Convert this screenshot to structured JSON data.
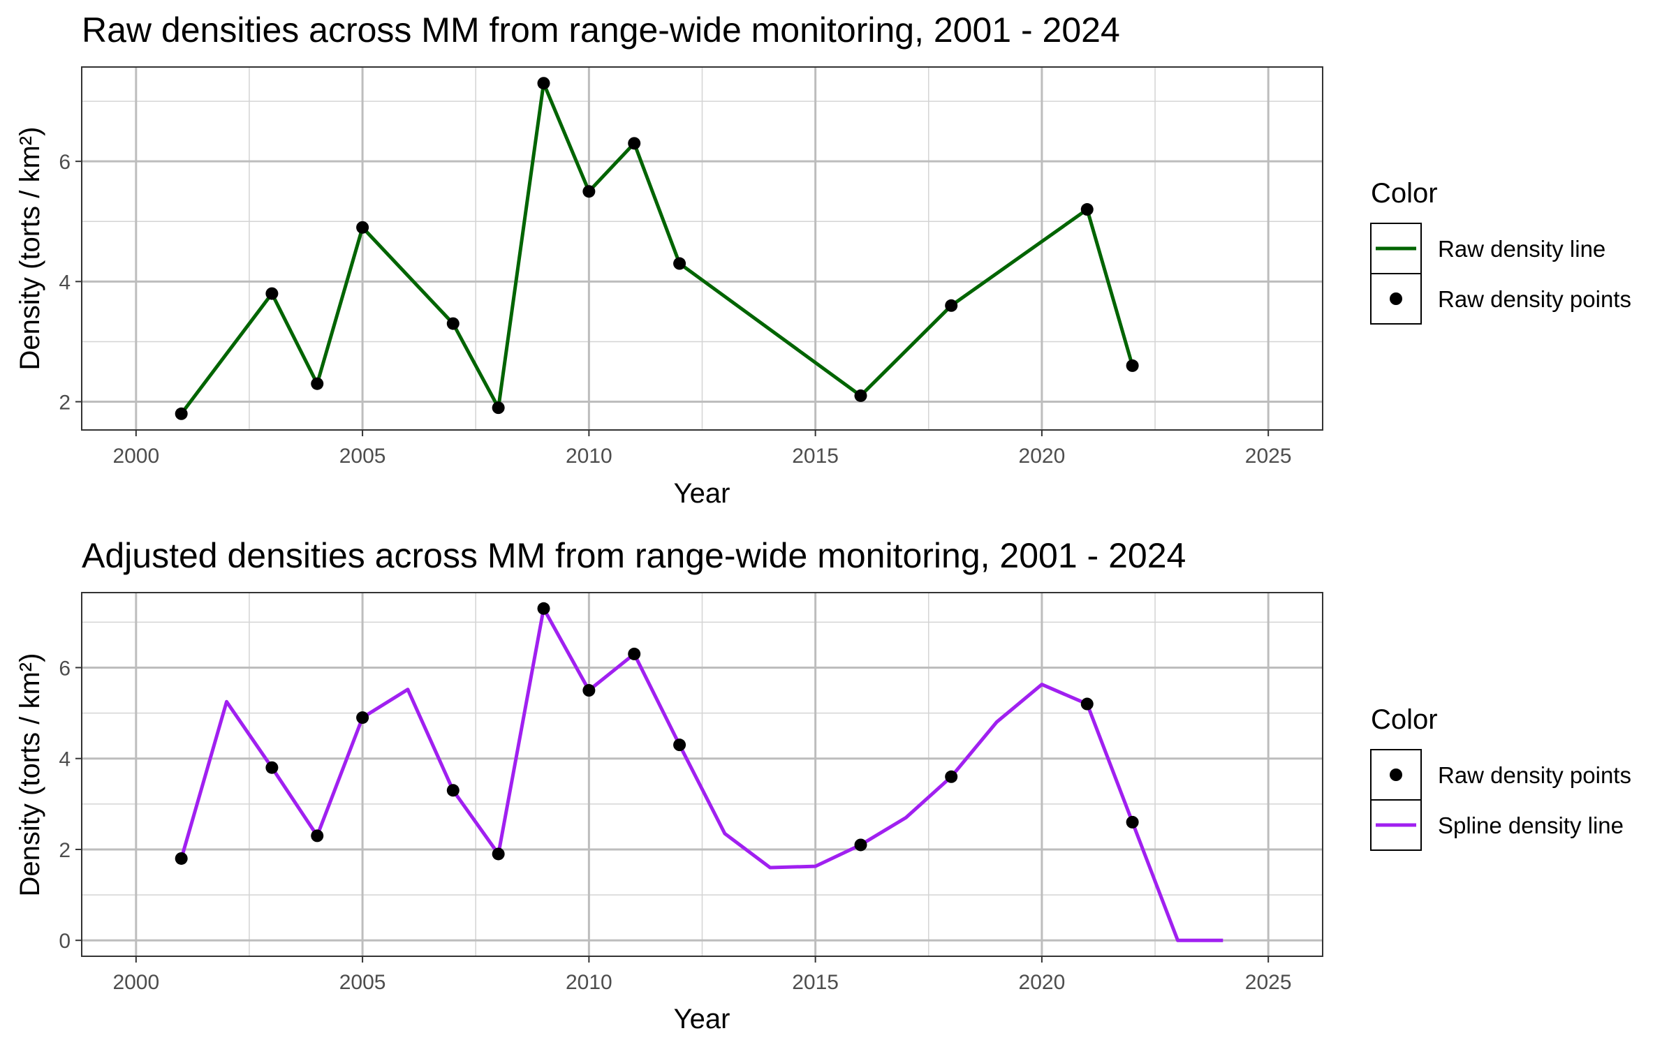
{
  "chart_data": [
    {
      "type": "line",
      "title": "Raw densities across MM from range-wide monitoring, 2001 - 2024",
      "xlabel": "Year",
      "ylabel": "Density (torts / km²)",
      "xlim": [
        1998.8,
        2026.2
      ],
      "ylim": [
        1.53,
        7.57
      ],
      "x_ticks": [
        2000,
        2005,
        2010,
        2015,
        2020,
        2025
      ],
      "x_tick_labels": [
        "2000",
        "2005",
        "2010",
        "2015",
        "2020",
        "2025"
      ],
      "y_ticks": [
        2,
        4,
        6
      ],
      "y_tick_labels": [
        "2",
        "4",
        "6"
      ],
      "grid": true,
      "legend": {
        "title": "Color",
        "position": "right",
        "entries": [
          {
            "label": "Raw density line",
            "kind": "line",
            "color": "#006400"
          },
          {
            "label": "Raw density points",
            "kind": "point",
            "color": "#000000"
          }
        ]
      },
      "series": [
        {
          "name": "Raw density line",
          "kind": "line",
          "color": "#006400",
          "x": [
            2001,
            2003,
            2004,
            2005,
            2007,
            2008,
            2009,
            2010,
            2011,
            2012,
            2016,
            2018,
            2021,
            2022
          ],
          "y": [
            1.8,
            3.8,
            2.3,
            4.9,
            3.3,
            1.9,
            7.3,
            5.5,
            6.3,
            4.3,
            2.1,
            3.6,
            5.2,
            2.6
          ]
        },
        {
          "name": "Raw density points",
          "kind": "point",
          "color": "#000000",
          "x": [
            2001,
            2003,
            2004,
            2005,
            2007,
            2008,
            2009,
            2010,
            2011,
            2012,
            2016,
            2018,
            2021,
            2022
          ],
          "y": [
            1.8,
            3.8,
            2.3,
            4.9,
            3.3,
            1.9,
            7.3,
            5.5,
            6.3,
            4.3,
            2.1,
            3.6,
            5.2,
            2.6
          ]
        }
      ]
    },
    {
      "type": "line",
      "title": "Adjusted densities across MM from range-wide monitoring, 2001 - 2024",
      "xlabel": "Year",
      "ylabel": "Density (torts / km²)",
      "xlim": [
        1998.8,
        2026.2
      ],
      "ylim": [
        -0.35,
        7.65
      ],
      "x_ticks": [
        2000,
        2005,
        2010,
        2015,
        2020,
        2025
      ],
      "x_tick_labels": [
        "2000",
        "2005",
        "2010",
        "2015",
        "2020",
        "2025"
      ],
      "y_ticks": [
        0,
        2,
        4,
        6
      ],
      "y_tick_labels": [
        "0",
        "2",
        "4",
        "6"
      ],
      "grid": true,
      "legend": {
        "title": "Color",
        "position": "right",
        "entries": [
          {
            "label": "Raw density points",
            "kind": "point",
            "color": "#000000"
          },
          {
            "label": "Spline density line",
            "kind": "line",
            "color": "#A020F0"
          }
        ]
      },
      "series": [
        {
          "name": "Spline density line",
          "kind": "line",
          "color": "#A020F0",
          "x": [
            2001,
            2002,
            2003,
            2004,
            2005,
            2006,
            2007,
            2008,
            2009,
            2010,
            2011,
            2012,
            2013,
            2014,
            2015,
            2016,
            2017,
            2018,
            2019,
            2020,
            2021,
            2022,
            2023,
            2024
          ],
          "y": [
            1.8,
            5.25,
            3.8,
            2.3,
            4.9,
            5.52,
            3.3,
            1.9,
            7.3,
            5.5,
            6.3,
            4.3,
            2.35,
            1.6,
            1.63,
            2.1,
            2.7,
            3.6,
            4.8,
            5.63,
            5.2,
            2.6,
            0.0,
            0.0
          ]
        },
        {
          "name": "Raw density points",
          "kind": "point",
          "color": "#000000",
          "x": [
            2001,
            2003,
            2004,
            2005,
            2007,
            2008,
            2009,
            2010,
            2011,
            2012,
            2016,
            2018,
            2021,
            2022
          ],
          "y": [
            1.8,
            3.8,
            2.3,
            4.9,
            3.3,
            1.9,
            7.3,
            5.5,
            6.3,
            4.3,
            2.1,
            3.6,
            5.2,
            2.6
          ]
        }
      ]
    }
  ]
}
